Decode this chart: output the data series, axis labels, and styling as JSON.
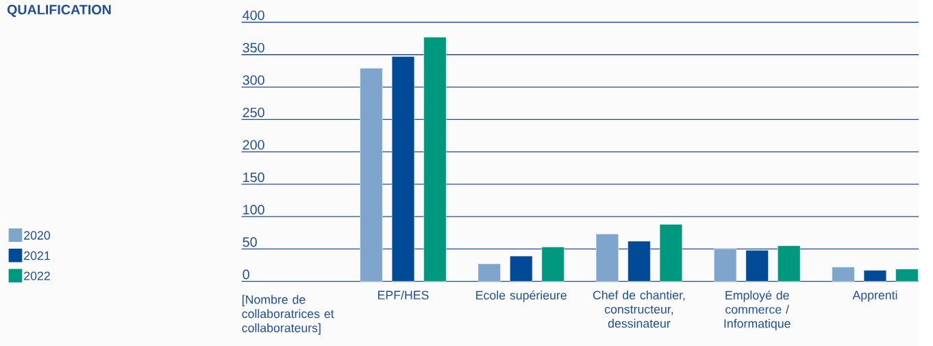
{
  "chart_data": {
    "type": "bar",
    "title": "QUALIFICATION",
    "ylabel": "[Nombre de collaboratrices et collaborateurs]",
    "categories": [
      "EPF/HES",
      "Ecole supérieure",
      "Chef de chantier, constructeur, dessinateur",
      "Employé de commerce / Informatique",
      "Apprenti"
    ],
    "series": [
      {
        "name": "2020",
        "color": "#80a5cc",
        "values": [
          329,
          27,
          73,
          50,
          22
        ]
      },
      {
        "name": "2021",
        "color": "#004a97",
        "values": [
          347,
          39,
          62,
          48,
          17
        ]
      },
      {
        "name": "2022",
        "color": "#00987f",
        "values": [
          377,
          53,
          88,
          55,
          19
        ]
      }
    ],
    "ylim": [
      0,
      400
    ],
    "yticks": [
      0,
      50,
      100,
      150,
      200,
      250,
      300,
      350,
      400
    ],
    "grid": "y",
    "legend": "left"
  }
}
